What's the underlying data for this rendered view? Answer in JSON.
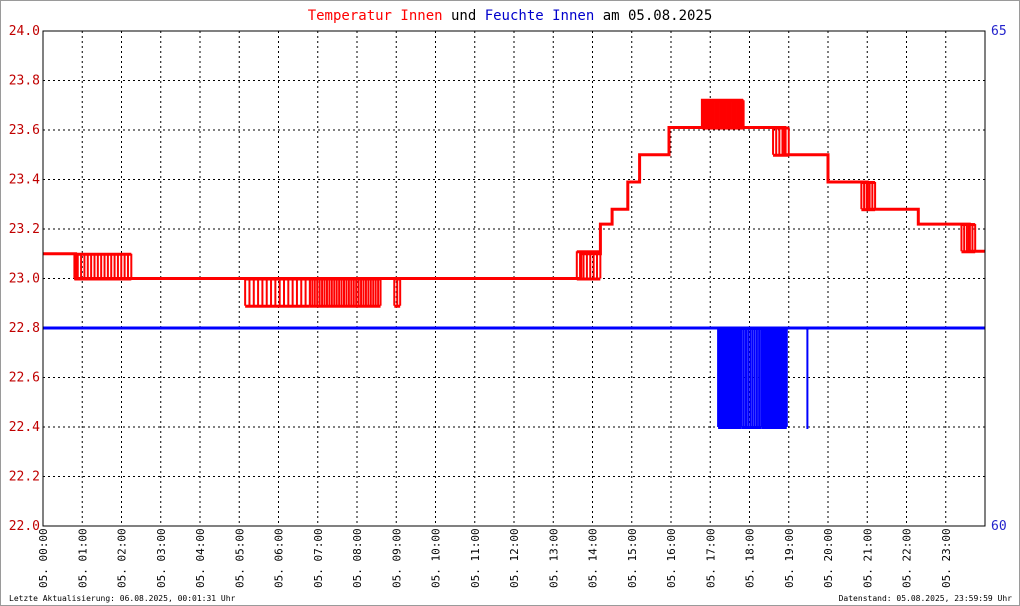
{
  "title": {
    "segments": [
      {
        "text": "Temperatur Innen",
        "color": "#ff0000"
      },
      {
        "text": " und ",
        "color": "#000000"
      },
      {
        "text": "Feuchte Innen",
        "color": "#0000cc"
      },
      {
        "text": " am 05.08.2025",
        "color": "#000000"
      }
    ]
  },
  "footer": {
    "left": "Letzte Aktualisierung: 06.08.2025, 00:01:31 Uhr",
    "right": "Datenstand: 05.08.2025, 23:59:59 Uhr"
  },
  "chart_data": {
    "type": "line",
    "grid": true,
    "x_range_hours": [
      0,
      24
    ],
    "x_tick_labels": [
      "05. 00:00",
      "05. 01:00",
      "05. 02:00",
      "05. 03:00",
      "05. 04:00",
      "05. 05:00",
      "05. 06:00",
      "05. 07:00",
      "05. 08:00",
      "05. 09:00",
      "05. 10:00",
      "05. 11:00",
      "05. 12:00",
      "05. 13:00",
      "05. 14:00",
      "05. 15:00",
      "05. 16:00",
      "05. 17:00",
      "05. 18:00",
      "05. 19:00",
      "05. 20:00",
      "05. 21:00",
      "05. 22:00",
      "05. 23:00"
    ],
    "y_left": {
      "range": [
        22.0,
        24.0
      ],
      "ticks": [
        "22.0",
        "22.2",
        "22.4",
        "22.6",
        "22.8",
        "23.0",
        "23.2",
        "23.4",
        "23.6",
        "23.8",
        "24.0"
      ],
      "color": "#c00000"
    },
    "y_right": {
      "range": [
        60,
        65
      ],
      "ticks": [
        "60",
        "65"
      ],
      "color": "#2222cc"
    },
    "colors": {
      "temperature": "#ff0000",
      "humidity": "#0000ff",
      "grid": "#000000"
    },
    "series": [
      {
        "axis": "left",
        "color": "#ff0000",
        "base": [
          [
            0.0,
            23.1
          ],
          [
            0.83,
            23.1
          ],
          [
            0.83,
            23.0
          ],
          [
            13.7,
            23.0
          ],
          [
            13.7,
            23.1
          ],
          [
            14.2,
            23.1
          ],
          [
            14.2,
            23.22
          ],
          [
            14.5,
            23.22
          ],
          [
            14.5,
            23.28
          ],
          [
            14.9,
            23.28
          ],
          [
            14.9,
            23.39
          ],
          [
            15.2,
            23.39
          ],
          [
            15.2,
            23.5
          ],
          [
            15.95,
            23.5
          ],
          [
            15.95,
            23.61
          ],
          [
            16.8,
            23.61
          ],
          [
            16.8,
            23.72
          ],
          [
            17.8,
            23.72
          ],
          [
            17.8,
            23.61
          ],
          [
            18.9,
            23.61
          ],
          [
            18.9,
            23.5
          ],
          [
            20.0,
            23.5
          ],
          [
            20.0,
            23.39
          ],
          [
            21.0,
            23.39
          ],
          [
            21.0,
            23.28
          ],
          [
            22.3,
            23.28
          ],
          [
            22.3,
            23.22
          ],
          [
            23.6,
            23.22
          ],
          [
            23.6,
            23.11
          ],
          [
            24.0,
            23.11
          ]
        ],
        "noise": [
          {
            "from": 0.8,
            "to": 2.25,
            "lo": 23.0,
            "hi": 23.1,
            "n": 18
          },
          {
            "from": 5.15,
            "to": 6.8,
            "lo": 22.89,
            "hi": 23.0,
            "n": 16
          },
          {
            "from": 6.8,
            "to": 8.6,
            "lo": 22.89,
            "hi": 23.0,
            "n": 30
          },
          {
            "from": 8.95,
            "to": 9.1,
            "lo": 22.89,
            "hi": 23.0,
            "n": 3
          },
          {
            "from": 13.6,
            "to": 14.2,
            "lo": 23.0,
            "hi": 23.11,
            "n": 8
          },
          {
            "from": 16.8,
            "to": 17.85,
            "lo": 23.61,
            "hi": 23.72,
            "n": 26
          },
          {
            "from": 18.6,
            "to": 19.0,
            "lo": 23.5,
            "hi": 23.61,
            "n": 6
          },
          {
            "from": 20.85,
            "to": 21.2,
            "lo": 23.28,
            "hi": 23.39,
            "n": 6
          },
          {
            "from": 23.4,
            "to": 23.75,
            "lo": 23.11,
            "hi": 23.22,
            "n": 6
          }
        ]
      },
      {
        "axis": "right",
        "color": "#0000ff",
        "base": [
          [
            0.0,
            62.0
          ],
          [
            24.0,
            62.0
          ]
        ],
        "noise": [
          {
            "from": 17.2,
            "to": 17.8,
            "lo": 61.0,
            "hi": 62.0,
            "n": 22
          },
          {
            "from": 17.8,
            "to": 18.3,
            "lo": 61.0,
            "hi": 62.0,
            "n": 10
          },
          {
            "from": 18.3,
            "to": 18.95,
            "lo": 61.0,
            "hi": 62.0,
            "n": 24
          },
          {
            "from": 19.45,
            "to": 19.5,
            "lo": 61.0,
            "hi": 62.0,
            "n": 1
          }
        ]
      }
    ]
  }
}
